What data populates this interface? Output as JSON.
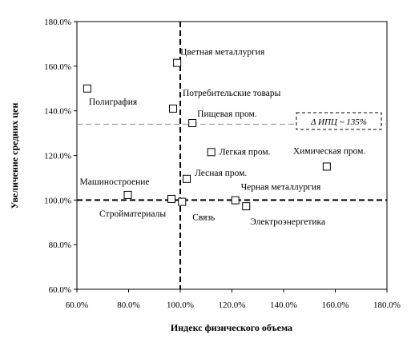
{
  "chart_data": {
    "type": "scatter",
    "xlabel": "Индекс физического объема",
    "ylabel": "Увеличение средних цен",
    "xlim": [
      60,
      180
    ],
    "ylim": [
      60,
      180
    ],
    "x_ticks": [
      "60.0%",
      "80.0%",
      "100.0%",
      "120.0%",
      "140.0%",
      "160.0%",
      "180.0%"
    ],
    "y_ticks": [
      "60.0%",
      "80.0%",
      "100.0%",
      "120.0%",
      "140.0%",
      "160.0%",
      "180.0%"
    ],
    "points": [
      {
        "label": "Полиграфия",
        "x": 64.0,
        "y": 150.0
      },
      {
        "label": "Цветная металлургия",
        "x": 98.8,
        "y": 161.5
      },
      {
        "label": "Потребительские товары",
        "x": 97.2,
        "y": 141.0
      },
      {
        "label": "Пищевая пром.",
        "x": 104.7,
        "y": 134.5
      },
      {
        "label": "Легкая пром.",
        "x": 112.0,
        "y": 121.5
      },
      {
        "label": "Химическая пром.",
        "x": 156.7,
        "y": 115.0
      },
      {
        "label": "Лесная пром.",
        "x": 102.5,
        "y": 109.5
      },
      {
        "label": "Машиностроение",
        "x": 79.7,
        "y": 102.3
      },
      {
        "label": "Стройматериалы",
        "x": 96.6,
        "y": 100.5
      },
      {
        "label": "Связь",
        "x": 100.7,
        "y": 99.2
      },
      {
        "label": "Черная металлургия",
        "x": 121.3,
        "y": 99.9
      },
      {
        "label": "Электроэнергетика",
        "x": 125.5,
        "y": 97.2
      }
    ],
    "reference_lines": {
      "vertical_x": 100,
      "horizontal_y": 100,
      "ipc_y": 134
    },
    "annotation": "Δ ИПЦ ~ 135%",
    "grid": false,
    "legend": "none"
  }
}
